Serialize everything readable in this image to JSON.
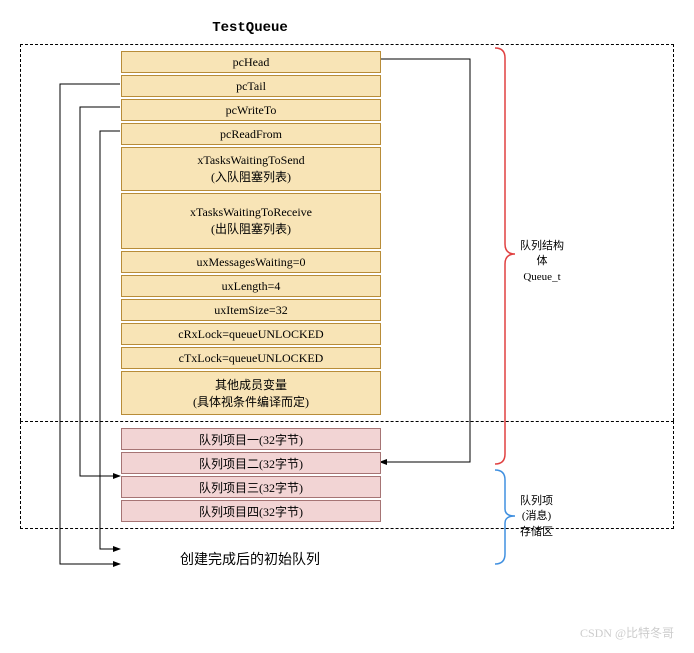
{
  "title": "TestQueue",
  "caption": "创建完成后的初始队列",
  "watermark": "CSDN @比特冬哥",
  "struct_section": {
    "cells": [
      {
        "label": "pcHead",
        "height": "h-small"
      },
      {
        "label": "pcTail",
        "height": "h-small"
      },
      {
        "label": "pcWriteTo",
        "height": "h-small"
      },
      {
        "label": "pcReadFrom",
        "height": "h-small"
      },
      {
        "label": "xTasksWaitingToSend\n(入队阻塞列表)",
        "height": "h-med"
      },
      {
        "label": "xTasksWaitingToReceive\n(出队阻塞列表)",
        "height": "h-large"
      },
      {
        "label": "uxMessagesWaiting=0",
        "height": "h-small"
      },
      {
        "label": "uxLength=4",
        "height": "h-small"
      },
      {
        "label": "uxItemSize=32",
        "height": "h-small"
      },
      {
        "label": "cRxLock=queueUNLOCKED",
        "height": "h-small"
      },
      {
        "label": "cTxLock=queueUNLOCKED",
        "height": "h-small"
      },
      {
        "label": "其他成员变量\n(具体视条件编译而定)",
        "height": "h-med"
      }
    ],
    "bracket_label": "队列结构\n体\nQueue_t",
    "bracket_color": "#e04040"
  },
  "storage_section": {
    "cells": [
      {
        "label": "队列项目一(32字节)",
        "height": "h-small"
      },
      {
        "label": "队列项目二(32字节)",
        "height": "h-small"
      },
      {
        "label": "队列项目三(32字节)",
        "height": "h-small"
      },
      {
        "label": "队列项目四(32字节)",
        "height": "h-small"
      }
    ],
    "bracket_label": "队列项\n(消息)\n存储区",
    "bracket_color": "#4090e0"
  },
  "arrows": {
    "color": "#000000",
    "stroke_width": 1
  }
}
